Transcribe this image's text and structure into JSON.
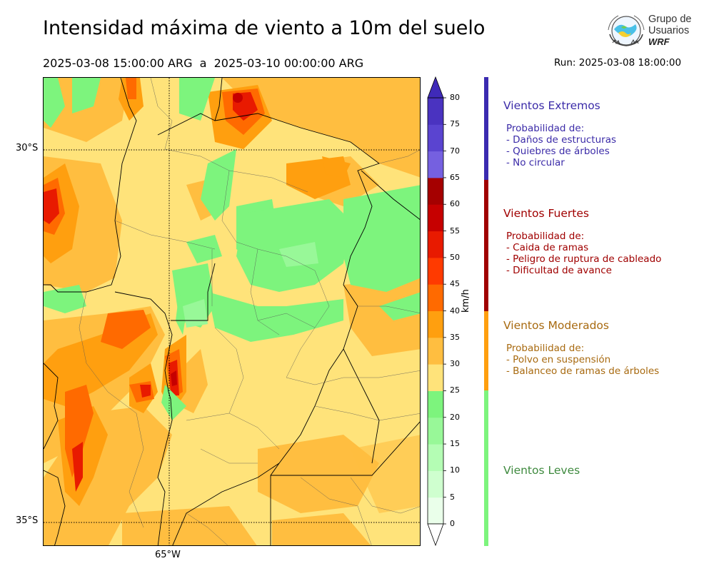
{
  "title": "Intensidad máxima de viento a 10m del suelo",
  "period": "2025-03-08 15:00:00 ARG  a  2025-03-10 00:00:00 ARG",
  "run": "Run: 2025-03-08 18:00:00",
  "logo": {
    "line1": "Grupo de",
    "line2": "Usuarios",
    "line3": "WRF",
    "icon": "globe-wind-logo-icon"
  },
  "map": {
    "lat_labels": [
      "30°S",
      "35°S"
    ],
    "lon_labels": [
      "65°W"
    ],
    "gridlines": [
      {
        "axis": "lat",
        "value": -30
      },
      {
        "axis": "lat",
        "value": -35
      },
      {
        "axis": "lon",
        "value": -65
      }
    ]
  },
  "colorbar": {
    "unit": "km/h",
    "ticks": [
      "0",
      "5",
      "10",
      "15",
      "20",
      "25",
      "30",
      "35",
      "40",
      "45",
      "50",
      "55",
      "60",
      "65",
      "70",
      "75",
      "80"
    ],
    "colors": [
      "#eaffea",
      "#cfffcf",
      "#b4fdb4",
      "#98f898",
      "#7df47d",
      "#ffe37a",
      "#ffbe40",
      "#ff9f0f",
      "#ff6a00",
      "#ff3a00",
      "#e81a00",
      "#c60000",
      "#a50000",
      "#7560e0",
      "#5a44d0",
      "#4a33c0"
    ],
    "under_color": "#ffffff",
    "over_color": "#3f2ab8"
  },
  "categories": [
    {
      "name": "Vientos Extremos",
      "color": "#3b2ba8",
      "range": [
        65,
        80
      ],
      "lines": [
        "Probabilidad de:",
        "- Daños de estructuras",
        "- Quiebres de árboles",
        "- No circular"
      ]
    },
    {
      "name": "Vientos Fuertes",
      "color": "#a00000",
      "range": [
        40,
        65
      ],
      "lines": [
        "Probabilidad de:",
        "- Caida de ramas",
        "- Peligro de ruptura de cableado",
        "- Dificultad de avance"
      ]
    },
    {
      "name": "Vientos Moderados",
      "color": "#a86a10",
      "range": [
        25,
        40
      ],
      "lines": [
        "Probabilidad de:",
        "- Polvo en suspensión",
        "- Balanceo de ramas de árboles"
      ]
    },
    {
      "name": "Vientos Leves",
      "color": "#3f8a3f",
      "range": [
        0,
        25
      ],
      "lines": []
    }
  ],
  "stripe_colors": [
    "#3b2bb0",
    "#a00000",
    "#ff9f0f",
    "#7df47d"
  ]
}
